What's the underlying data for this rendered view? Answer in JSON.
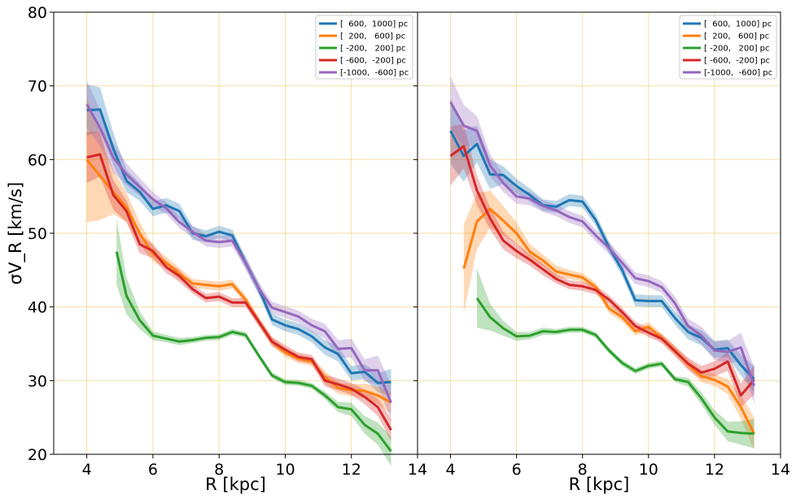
{
  "chart_data": [
    {
      "type": "line",
      "panel": "left",
      "xlabel": "R [kpc]",
      "ylabel": "σV_R [km/s]",
      "xlim": [
        3,
        14
      ],
      "ylim": [
        20,
        80
      ],
      "xticks": [
        "4",
        "6",
        "8",
        "10",
        "12",
        "14"
      ],
      "yticks": [
        "20",
        "30",
        "40",
        "50",
        "60",
        "70",
        "80"
      ],
      "grid": true,
      "legend_position": "top-right",
      "series": [
        {
          "name": "[  600,  1000] pc",
          "color": "#1f77b4",
          "x": [
            4.0,
            4.4,
            4.8,
            5.2,
            5.6,
            6.0,
            6.4,
            6.8,
            7.2,
            7.6,
            8.0,
            8.4,
            8.8,
            9.2,
            9.6,
            10.0,
            10.4,
            10.8,
            11.2,
            11.6,
            12.0,
            12.4,
            12.8,
            13.2
          ],
          "y": [
            66.7,
            66.8,
            61.5,
            57.1,
            55.6,
            53.3,
            53.8,
            53.0,
            50.0,
            49.6,
            50.2,
            49.7,
            46.0,
            42.5,
            38.3,
            37.5,
            37.0,
            36.0,
            34.5,
            33.6,
            31.0,
            31.2,
            29.7,
            29.8
          ],
          "band": [
            3.5,
            3.0,
            2.2,
            1.5,
            1.2,
            1.0,
            1.0,
            1.0,
            0.9,
            0.8,
            0.8,
            0.8,
            0.8,
            0.8,
            0.8,
            0.8,
            0.8,
            0.8,
            1.0,
            1.0,
            1.0,
            1.0,
            1.3,
            1.8
          ]
        },
        {
          "name": "[  200,   600] pc",
          "color": "#ff7f0e",
          "x": [
            4.0,
            4.4,
            4.8,
            5.2,
            5.6,
            6.0,
            6.4,
            6.8,
            7.2,
            7.6,
            8.0,
            8.4,
            8.8,
            9.2,
            9.6,
            10.0,
            10.4,
            10.8,
            11.2,
            11.6,
            12.0,
            12.4,
            12.8,
            13.2
          ],
          "y": [
            60.0,
            57.8,
            55.6,
            53.5,
            50.0,
            47.2,
            46.0,
            44.5,
            43.2,
            43.0,
            42.8,
            43.1,
            41.0,
            38.0,
            35.3,
            33.8,
            33.0,
            32.6,
            30.5,
            29.0,
            28.7,
            28.6,
            28.0,
            27.0
          ],
          "band": [
            8.5,
            6.0,
            3.0,
            2.0,
            1.5,
            1.0,
            0.8,
            0.8,
            0.6,
            0.6,
            0.6,
            0.6,
            0.6,
            0.6,
            0.6,
            0.6,
            0.6,
            0.6,
            0.8,
            0.8,
            0.8,
            1.0,
            1.2,
            1.5
          ]
        },
        {
          "name": "[ -200,   200] pc",
          "color": "#2ca02c",
          "x": [
            4.9,
            5.2,
            5.6,
            6.0,
            6.4,
            6.8,
            7.2,
            7.6,
            8.0,
            8.4,
            8.8,
            9.2,
            9.6,
            10.0,
            10.4,
            10.8,
            11.2,
            11.6,
            12.0,
            12.4,
            12.8,
            13.2
          ],
          "y": [
            47.5,
            41.5,
            38.2,
            36.1,
            35.7,
            35.3,
            35.5,
            35.8,
            35.9,
            36.6,
            36.2,
            33.4,
            30.7,
            29.8,
            29.7,
            29.3,
            28.0,
            26.4,
            26.1,
            24.0,
            22.8,
            20.4
          ],
          "band": [
            4.5,
            2.5,
            1.2,
            0.6,
            0.5,
            0.5,
            0.4,
            0.4,
            0.4,
            0.4,
            0.4,
            0.4,
            0.4,
            0.4,
            0.4,
            0.4,
            0.5,
            0.7,
            0.9,
            1.2,
            1.5,
            2.0
          ]
        },
        {
          "name": "[ -600,  -200] pc",
          "color": "#d62728",
          "x": [
            4.0,
            4.4,
            4.8,
            5.2,
            5.6,
            6.0,
            6.4,
            6.8,
            7.2,
            7.6,
            8.0,
            8.4,
            8.8,
            9.2,
            9.6,
            10.0,
            10.4,
            10.8,
            11.2,
            11.6,
            12.0,
            12.4,
            12.8,
            13.2
          ],
          "y": [
            60.3,
            60.7,
            55.2,
            53.0,
            48.5,
            47.6,
            45.4,
            44.2,
            42.4,
            41.2,
            41.4,
            40.6,
            40.6,
            38.0,
            35.3,
            34.2,
            33.2,
            32.9,
            30.0,
            29.5,
            28.9,
            27.8,
            26.4,
            23.3
          ],
          "band": [
            3.5,
            3.0,
            2.0,
            1.5,
            1.2,
            1.0,
            0.8,
            0.8,
            0.6,
            0.6,
            0.6,
            0.6,
            0.6,
            0.6,
            0.6,
            0.6,
            0.6,
            0.6,
            0.8,
            0.8,
            0.8,
            1.0,
            1.2,
            1.5
          ]
        },
        {
          "name": "[-1000,  -600] pc",
          "color": "#9467bd",
          "x": [
            4.0,
            4.4,
            4.8,
            5.2,
            5.6,
            6.0,
            6.4,
            6.8,
            7.2,
            7.6,
            8.0,
            8.4,
            8.8,
            9.2,
            9.6,
            10.0,
            10.4,
            10.8,
            11.2,
            11.6,
            12.0,
            12.4,
            12.8,
            13.2
          ],
          "y": [
            67.5,
            64.3,
            60.3,
            58.0,
            56.3,
            54.6,
            53.4,
            51.5,
            50.2,
            49.0,
            48.8,
            49.0,
            46.0,
            42.5,
            39.9,
            39.3,
            38.7,
            37.5,
            36.7,
            34.3,
            34.4,
            31.4,
            31.4,
            27.0
          ],
          "band": [
            3.2,
            2.5,
            2.0,
            1.5,
            1.2,
            1.0,
            0.8,
            0.8,
            0.8,
            0.8,
            0.8,
            0.8,
            0.8,
            0.8,
            0.8,
            0.8,
            0.8,
            0.9,
            1.0,
            1.2,
            1.3,
            1.5,
            2.0,
            2.5
          ]
        }
      ]
    },
    {
      "type": "line",
      "panel": "right",
      "xlabel": "R [kpc]",
      "ylabel": "",
      "xlim": [
        3,
        14
      ],
      "ylim": [
        20,
        80
      ],
      "xticks": [
        "4",
        "6",
        "8",
        "10",
        "12",
        "14"
      ],
      "yticks": [],
      "grid": true,
      "legend_position": "top-right",
      "series": [
        {
          "name": "[  600,  1000] pc",
          "color": "#1f77b4",
          "x": [
            4.0,
            4.4,
            4.8,
            5.2,
            5.6,
            6.0,
            6.4,
            6.8,
            7.2,
            7.6,
            8.0,
            8.4,
            8.8,
            9.2,
            9.6,
            10.0,
            10.4,
            10.8,
            11.2,
            11.6,
            12.0,
            12.4,
            12.8,
            13.2
          ],
          "y": [
            63.9,
            60.5,
            62.1,
            58.0,
            57.9,
            56.4,
            55.2,
            53.8,
            53.6,
            54.5,
            54.3,
            51.8,
            48.1,
            45.0,
            40.9,
            40.8,
            40.8,
            38.5,
            36.6,
            35.8,
            34.2,
            34.4,
            32.1,
            30.2
          ],
          "band": [
            4.5,
            3.5,
            2.5,
            2.0,
            1.2,
            1.0,
            0.9,
            0.8,
            0.8,
            0.8,
            0.8,
            0.8,
            0.8,
            0.8,
            0.8,
            0.8,
            0.8,
            0.9,
            1.0,
            1.0,
            1.1,
            1.2,
            1.4,
            1.8
          ]
        },
        {
          "name": "[  200,   600] pc",
          "color": "#ff7f0e",
          "x": [
            4.4,
            4.8,
            5.2,
            5.6,
            6.0,
            6.4,
            6.8,
            7.2,
            7.6,
            8.0,
            8.4,
            8.8,
            9.2,
            9.6,
            10.0,
            10.4,
            10.8,
            11.2,
            11.6,
            12.0,
            12.4,
            12.8,
            13.2
          ],
          "y": [
            45.2,
            51.6,
            53.3,
            51.7,
            50.0,
            47.5,
            46.3,
            44.8,
            44.4,
            44.0,
            42.7,
            39.8,
            38.6,
            36.7,
            37.3,
            35.8,
            34.1,
            32.2,
            30.6,
            30.1,
            29.2,
            26.4,
            22.8
          ],
          "band": [
            6.0,
            3.8,
            2.5,
            2.0,
            1.5,
            1.0,
            0.8,
            0.8,
            0.6,
            0.6,
            0.6,
            0.6,
            0.6,
            0.6,
            0.6,
            0.6,
            0.6,
            0.7,
            0.8,
            0.8,
            1.0,
            1.6,
            2.2
          ]
        },
        {
          "name": "[ -200,   200] pc",
          "color": "#2ca02c",
          "x": [
            4.8,
            5.2,
            5.6,
            6.0,
            6.4,
            6.8,
            7.2,
            7.6,
            8.0,
            8.4,
            8.8,
            9.2,
            9.6,
            10.0,
            10.4,
            10.8,
            11.2,
            11.6,
            12.0,
            12.4,
            12.8,
            13.2
          ],
          "y": [
            41.2,
            38.6,
            37.1,
            36.0,
            36.1,
            36.7,
            36.6,
            36.9,
            36.9,
            36.2,
            34.1,
            32.4,
            31.3,
            32.0,
            32.3,
            30.2,
            29.8,
            27.6,
            25.0,
            23.1,
            22.9,
            22.8
          ],
          "band": [
            4.0,
            1.8,
            1.0,
            0.6,
            0.5,
            0.5,
            0.4,
            0.4,
            0.4,
            0.4,
            0.4,
            0.4,
            0.4,
            0.4,
            0.4,
            0.4,
            0.6,
            0.8,
            1.0,
            1.3,
            1.6,
            2.0
          ]
        },
        {
          "name": "[ -600,  -200] pc",
          "color": "#d62728",
          "x": [
            4.0,
            4.4,
            4.8,
            5.2,
            5.6,
            6.0,
            6.4,
            6.8,
            7.2,
            7.6,
            8.0,
            8.4,
            8.8,
            9.2,
            9.6,
            10.0,
            10.4,
            10.8,
            11.2,
            11.6,
            12.0,
            12.4,
            12.8,
            13.2
          ],
          "y": [
            60.5,
            61.8,
            55.8,
            52.0,
            49.0,
            47.6,
            46.4,
            45.1,
            43.8,
            43.0,
            42.8,
            42.3,
            41.0,
            39.3,
            37.4,
            36.5,
            35.7,
            34.0,
            32.3,
            31.1,
            31.6,
            32.6,
            28.0,
            30.1
          ],
          "band": [
            4.0,
            3.0,
            2.0,
            1.5,
            1.2,
            1.0,
            0.8,
            0.8,
            0.6,
            0.6,
            0.6,
            0.6,
            0.6,
            0.6,
            0.6,
            0.6,
            0.6,
            0.7,
            0.8,
            0.9,
            1.0,
            1.3,
            1.6,
            2.0
          ]
        },
        {
          "name": "[-1000,  -600] pc",
          "color": "#9467bd",
          "x": [
            4.0,
            4.4,
            4.8,
            5.2,
            5.6,
            6.0,
            6.4,
            6.8,
            7.2,
            7.6,
            8.0,
            8.4,
            8.8,
            9.2,
            9.6,
            10.0,
            10.4,
            10.8,
            11.2,
            11.6,
            12.0,
            12.4,
            12.8,
            13.2
          ],
          "y": [
            67.8,
            64.6,
            63.9,
            59.2,
            56.8,
            55.0,
            54.7,
            53.7,
            53.1,
            52.2,
            51.6,
            49.7,
            48.0,
            46.0,
            43.9,
            43.5,
            42.7,
            40.5,
            37.4,
            36.1,
            34.1,
            33.9,
            34.5,
            29.3
          ],
          "band": [
            3.5,
            2.8,
            2.0,
            1.5,
            1.2,
            1.0,
            0.9,
            0.8,
            0.8,
            0.8,
            0.8,
            0.8,
            0.8,
            0.8,
            0.8,
            0.8,
            0.8,
            0.9,
            1.0,
            1.2,
            1.3,
            1.5,
            2.0,
            2.5
          ]
        }
      ]
    }
  ]
}
